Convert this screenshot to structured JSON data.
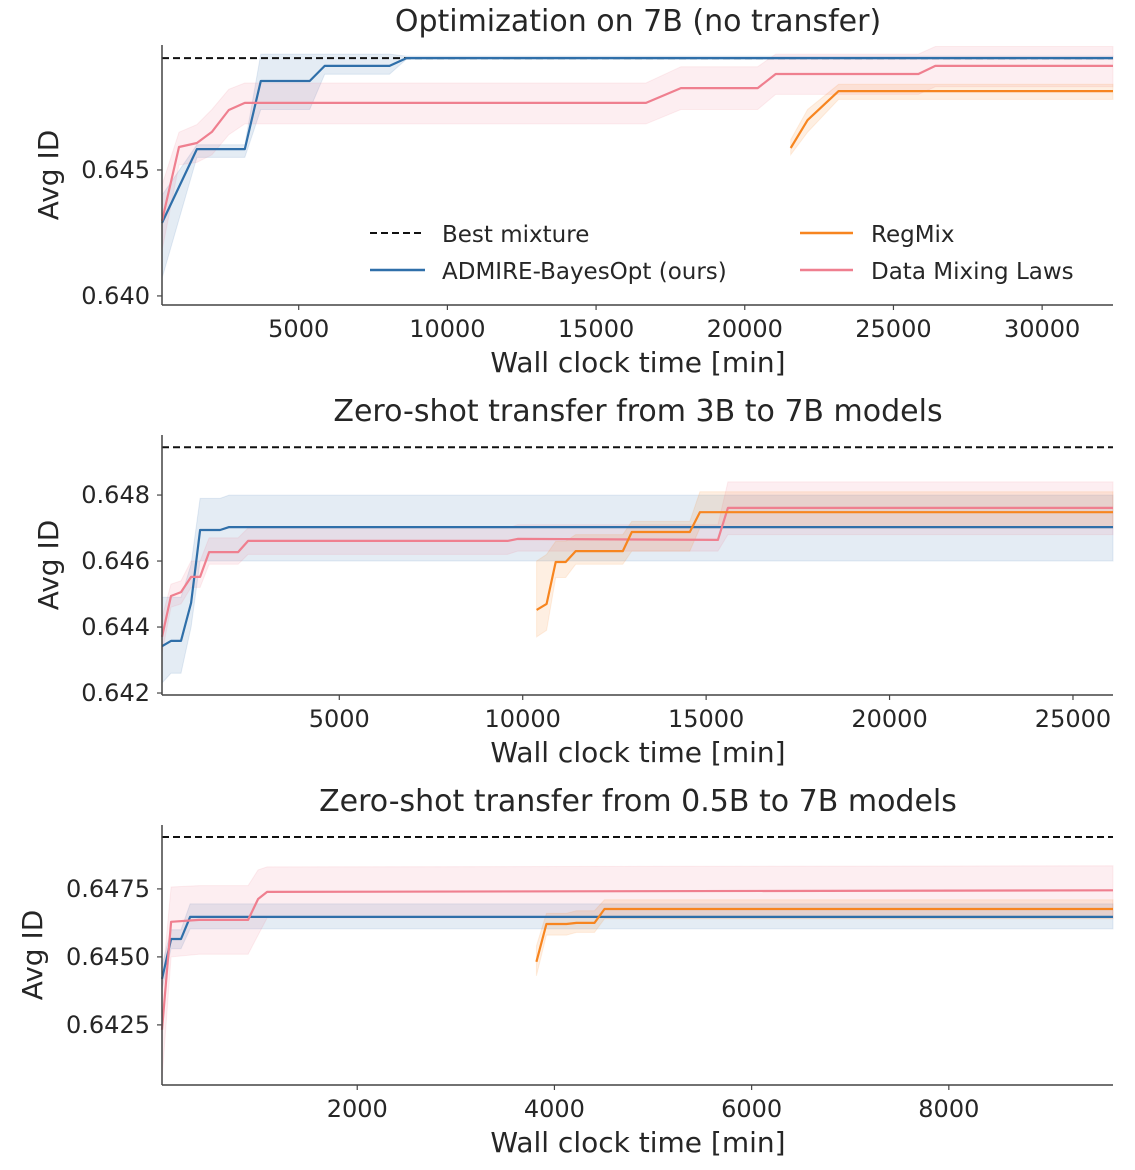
{
  "colors": {
    "best": "#111111",
    "admire": "#2f6fa9",
    "regmix": "#f7851f",
    "dml": "#ef7f8f"
  },
  "legend": {
    "best": "Best mixture",
    "admire": "ADMIRE-BayesOpt (ours)",
    "regmix": "RegMix",
    "dml": "Data Mixing Laws"
  },
  "chart_data": [
    {
      "type": "line",
      "title": "Optimization on 7B (no transfer)",
      "xlabel": "Wall clock time [min]",
      "ylabel": "Avg ID",
      "xlim": [
        403,
        32383
      ],
      "ylim": [
        0.63964,
        0.64996
      ],
      "xticks": [
        5000,
        10000,
        15000,
        20000,
        25000,
        30000
      ],
      "yticks": [
        0.64,
        0.645
      ],
      "ytick_decimals": 3,
      "legend_location": "lower-right",
      "best": 0.64944,
      "series": [
        {
          "key": "admire",
          "points": [
            [
              403,
              0.6429,
              0.6407,
              0.644
            ],
            [
              1577,
              0.64583,
              0.6455,
              0.646
            ],
            [
              3188,
              0.64583,
              0.6455,
              0.646
            ],
            [
              3725,
              0.64853,
              0.6474,
              0.6496
            ],
            [
              5370,
              0.64853,
              0.6474,
              0.6496
            ],
            [
              5873,
              0.64913,
              0.6488,
              0.6496
            ],
            [
              8054,
              0.64913,
              0.6488,
              0.6496
            ],
            [
              8624,
              0.64944,
              0.6494,
              0.64952
            ],
            [
              32383,
              0.64944,
              0.6494,
              0.64952
            ]
          ]
        },
        {
          "key": "dml",
          "points": [
            [
              403,
              0.64298,
              0.6418,
              0.6444
            ],
            [
              973,
              0.64591,
              0.6452,
              0.6465
            ],
            [
              1577,
              0.64607,
              0.6453,
              0.6468
            ],
            [
              2081,
              0.64651,
              0.6456,
              0.6474
            ],
            [
              2651,
              0.64738,
              0.6464,
              0.6482
            ],
            [
              3188,
              0.64766,
              0.64683,
              0.64845
            ],
            [
              16678,
              0.64766,
              0.64683,
              0.64845
            ],
            [
              17852,
              0.64825,
              0.6474,
              0.6491
            ],
            [
              20436,
              0.64825,
              0.6474,
              0.6491
            ],
            [
              21040,
              0.64881,
              0.648,
              0.6496
            ],
            [
              25839,
              0.64881,
              0.648,
              0.6496
            ],
            [
              26409,
              0.64913,
              0.6483,
              0.6499
            ],
            [
              32383,
              0.64913,
              0.6483,
              0.6499
            ]
          ]
        },
        {
          "key": "regmix",
          "points": [
            [
              21544,
              0.64587,
              0.6456,
              0.6462
            ],
            [
              22114,
              0.64698,
              0.6465,
              0.6474
            ],
            [
              23154,
              0.64813,
              0.6478,
              0.6484
            ],
            [
              32383,
              0.64813,
              0.6478,
              0.6484
            ]
          ]
        }
      ]
    },
    {
      "type": "line",
      "title": "Zero-shot transfer from 3B to 7B models",
      "xlabel": "Wall clock time [min]",
      "ylabel": "Avg ID",
      "xlim": [
        167,
        26091
      ],
      "ylim": [
        0.64194,
        0.64982
      ],
      "xticks": [
        5000,
        10000,
        15000,
        20000,
        25000
      ],
      "yticks": [
        0.642,
        0.644,
        0.646,
        0.648
      ],
      "ytick_decimals": 3,
      "best": 0.64945,
      "series": [
        {
          "key": "admire",
          "points": [
            [
              167,
              0.64342,
              0.6423,
              0.6449
            ],
            [
              413,
              0.64358,
              0.6426,
              0.6449
            ],
            [
              686,
              0.64358,
              0.6426,
              0.6449
            ],
            [
              959,
              0.64473,
              0.644,
              0.6459
            ],
            [
              1205,
              0.64694,
              0.646,
              0.6479
            ],
            [
              1751,
              0.64694,
              0.646,
              0.6479
            ],
            [
              1997,
              0.64703,
              0.646,
              0.648
            ],
            [
              26091,
              0.64703,
              0.646,
              0.648
            ]
          ]
        },
        {
          "key": "dml",
          "points": [
            [
              167,
              0.6437,
              0.6432,
              0.6443
            ],
            [
              413,
              0.64494,
              0.6446,
              0.6453
            ],
            [
              686,
              0.64506,
              0.6447,
              0.6454
            ],
            [
              959,
              0.64552,
              0.6452,
              0.646
            ],
            [
              1205,
              0.64552,
              0.6452,
              0.646
            ],
            [
              1450,
              0.64627,
              0.6459,
              0.6467
            ],
            [
              2242,
              0.64627,
              0.6459,
              0.6467
            ],
            [
              2515,
              0.64661,
              0.6462,
              0.647
            ],
            [
              9587,
              0.64661,
              0.6462,
              0.647
            ],
            [
              9860,
              0.64667,
              0.6463,
              0.6471
            ],
            [
              15321,
              0.64664,
              0.6463,
              0.6471
            ],
            [
              15594,
              0.64761,
              0.6468,
              0.6484
            ],
            [
              26091,
              0.64761,
              0.6468,
              0.6484
            ]
          ]
        },
        {
          "key": "regmix",
          "points": [
            [
              10379,
              0.64452,
              0.6437,
              0.646
            ],
            [
              10652,
              0.6447,
              0.6439,
              0.6462
            ],
            [
              10898,
              0.64597,
              0.6455,
              0.6466
            ],
            [
              11171,
              0.64597,
              0.6455,
              0.6466
            ],
            [
              11444,
              0.6463,
              0.6459,
              0.6468
            ],
            [
              12727,
              0.6463,
              0.6459,
              0.6468
            ],
            [
              12973,
              0.64688,
              0.6463,
              0.6472
            ],
            [
              14556,
              0.64688,
              0.6463,
              0.6472
            ],
            [
              14829,
              0.64748,
              0.647,
              0.6481
            ],
            [
              26091,
              0.64748,
              0.647,
              0.6481
            ]
          ]
        }
      ]
    },
    {
      "type": "line",
      "title": "Zero-shot transfer from 0.5B to 7B models",
      "xlabel": "Wall clock time [min]",
      "ylabel": "Avg ID",
      "xlim": [
        20,
        9665
      ],
      "ylim": [
        0.64029,
        0.64985
      ],
      "xticks": [
        2000,
        4000,
        6000,
        8000
      ],
      "yticks": [
        0.6425,
        0.645,
        0.6475
      ],
      "ytick_decimals": 4,
      "best": 0.64941,
      "series": [
        {
          "key": "admire",
          "points": [
            [
              20,
              0.64419,
              0.6438,
              0.6447
            ],
            [
              112,
              0.64566,
              0.6453,
              0.646
            ],
            [
              213,
              0.64566,
              0.6453,
              0.646
            ],
            [
              305,
              0.64647,
              0.64603,
              0.64695
            ],
            [
              9665,
              0.64647,
              0.64603,
              0.64695
            ]
          ]
        },
        {
          "key": "dml",
          "points": [
            [
              20,
              0.64232,
              0.6405,
              0.644
            ],
            [
              112,
              0.64629,
              0.645,
              0.64757
            ],
            [
              396,
              0.64636,
              0.6451,
              0.64762
            ],
            [
              893,
              0.64636,
              0.6451,
              0.64762
            ],
            [
              995,
              0.64713,
              0.6458,
              0.6482
            ],
            [
              1086,
              0.64739,
              0.64643,
              0.64831
            ],
            [
              9665,
              0.64745,
              0.64643,
              0.64835
            ]
          ]
        },
        {
          "key": "regmix",
          "points": [
            [
              3817,
              0.64482,
              0.6443,
              0.6454
            ],
            [
              3919,
              0.64621,
              0.6458,
              0.6466
            ],
            [
              4122,
              0.64621,
              0.6458,
              0.6466
            ],
            [
              4223,
              0.64625,
              0.6459,
              0.6467
            ],
            [
              4406,
              0.64625,
              0.6459,
              0.6467
            ],
            [
              4508,
              0.64676,
              0.6464,
              0.6471
            ],
            [
              9665,
              0.64676,
              0.6464,
              0.6471
            ]
          ]
        }
      ]
    }
  ]
}
